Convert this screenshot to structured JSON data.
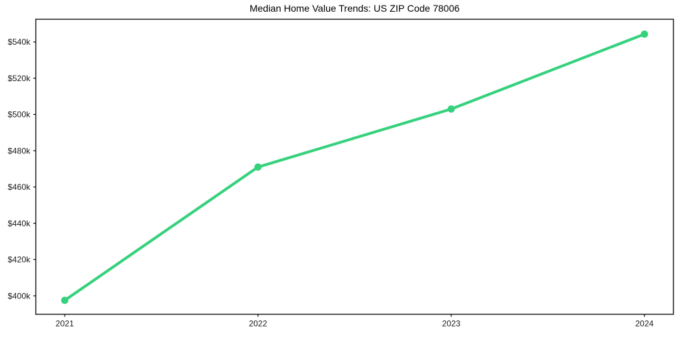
{
  "figure": {
    "background_color": "#ffffff"
  },
  "chart_data": {
    "type": "line",
    "title": "Median Home Value Trends: US ZIP Code 78006",
    "xlabel": "",
    "ylabel": "",
    "x": [
      "2021",
      "2022",
      "2023",
      "2024"
    ],
    "series": [
      {
        "name": "Median Home Value",
        "values": [
          397500,
          471000,
          503000,
          544300
        ]
      }
    ],
    "y_ticks": [
      {
        "value": 400000,
        "label": "$400k"
      },
      {
        "value": 420000,
        "label": "$420k"
      },
      {
        "value": 440000,
        "label": "$440k"
      },
      {
        "value": 460000,
        "label": "$460k"
      },
      {
        "value": 480000,
        "label": "$480k"
      },
      {
        "value": 500000,
        "label": "$500k"
      },
      {
        "value": 520000,
        "label": "$520k"
      },
      {
        "value": 540000,
        "label": "$540k"
      }
    ],
    "ylim": [
      389800,
      552500
    ],
    "grid": false,
    "legend": "none",
    "line_color": "#36d17d",
    "marker": "circle",
    "axis_color": "#000000",
    "tick_label_color": "#1a1a1a"
  }
}
